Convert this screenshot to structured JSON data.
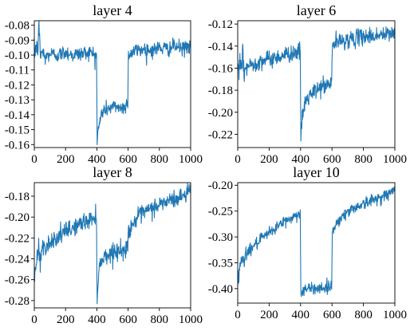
{
  "figure": {
    "line_color": "#1f77b4"
  },
  "chart_data": [
    {
      "type": "line",
      "title": "layer 4",
      "xlim": [
        0,
        1000
      ],
      "ylim": [
        -0.162,
        -0.077
      ],
      "xticks": [
        0,
        200,
        400,
        600,
        800,
        1000
      ],
      "xtick_labels": [
        "0",
        "200",
        "400",
        "600",
        "800",
        "1000"
      ],
      "yticks": [
        -0.08,
        -0.09,
        -0.1,
        -0.11,
        -0.12,
        -0.13,
        -0.14,
        -0.15,
        -0.16
      ],
      "ytick_labels": [
        "-0.08",
        "-0.09",
        "-0.10",
        "-0.11",
        "-0.12",
        "-0.13",
        "-0.14",
        "-0.15",
        "-0.16"
      ],
      "grid": false,
      "series": [
        {
          "x": [
            0,
            10,
            20,
            30,
            40,
            50,
            70,
            100,
            150,
            200,
            250,
            300,
            350,
            395,
            399,
            401,
            410,
            430,
            460,
            500,
            530,
            560,
            590,
            599,
            601,
            620,
            650,
            700,
            750,
            800,
            850,
            900,
            950,
            1000
          ],
          "y": [
            -0.1,
            -0.093,
            -0.098,
            -0.082,
            -0.101,
            -0.097,
            -0.102,
            -0.099,
            -0.1,
            -0.098,
            -0.1,
            -0.099,
            -0.098,
            -0.1,
            -0.099,
            -0.158,
            -0.15,
            -0.139,
            -0.136,
            -0.135,
            -0.134,
            -0.136,
            -0.133,
            -0.132,
            -0.099,
            -0.099,
            -0.097,
            -0.096,
            -0.097,
            -0.095,
            -0.096,
            -0.094,
            -0.096,
            -0.093
          ]
        }
      ]
    },
    {
      "type": "line",
      "title": "layer 6",
      "xlim": [
        0,
        1000
      ],
      "ylim": [
        -0.232,
        -0.117
      ],
      "xticks": [
        0,
        200,
        400,
        600,
        800,
        1000
      ],
      "xtick_labels": [
        "0",
        "200",
        "400",
        "600",
        "800",
        "1000"
      ],
      "yticks": [
        -0.12,
        -0.14,
        -0.16,
        -0.18,
        -0.2,
        -0.22
      ],
      "ytick_labels": [
        "-0.12",
        "-0.14",
        "-0.16",
        "-0.18",
        "-0.20",
        "-0.22"
      ],
      "grid": false,
      "series": [
        {
          "x": [
            0,
            10,
            20,
            30,
            40,
            50,
            70,
            100,
            150,
            200,
            250,
            300,
            350,
            395,
            399,
            401,
            410,
            430,
            460,
            500,
            530,
            560,
            590,
            599,
            601,
            620,
            650,
            700,
            750,
            800,
            850,
            900,
            950,
            1000
          ],
          "y": [
            -0.168,
            -0.163,
            -0.158,
            -0.15,
            -0.162,
            -0.16,
            -0.158,
            -0.156,
            -0.153,
            -0.152,
            -0.15,
            -0.148,
            -0.146,
            -0.145,
            -0.144,
            -0.228,
            -0.205,
            -0.19,
            -0.185,
            -0.18,
            -0.177,
            -0.176,
            -0.174,
            -0.173,
            -0.14,
            -0.137,
            -0.136,
            -0.134,
            -0.133,
            -0.131,
            -0.131,
            -0.13,
            -0.13,
            -0.127
          ]
        }
      ]
    },
    {
      "type": "line",
      "title": "layer 8",
      "xlim": [
        0,
        1000
      ],
      "ylim": [
        -0.287,
        -0.167
      ],
      "xticks": [
        0,
        200,
        400,
        600,
        800,
        1000
      ],
      "xtick_labels": [
        "0",
        "200",
        "400",
        "600",
        "800",
        "1000"
      ],
      "yticks": [
        -0.18,
        -0.2,
        -0.22,
        -0.24,
        -0.26,
        -0.28
      ],
      "ytick_labels": [
        "-0.18",
        "-0.20",
        "-0.22",
        "-0.24",
        "-0.26",
        "-0.28"
      ],
      "grid": false,
      "series": [
        {
          "x": [
            0,
            10,
            20,
            30,
            40,
            50,
            70,
            100,
            150,
            200,
            250,
            300,
            350,
            395,
            399,
            401,
            410,
            430,
            460,
            500,
            530,
            560,
            590,
            599,
            601,
            620,
            650,
            700,
            750,
            800,
            850,
            900,
            950,
            1000
          ],
          "y": [
            -0.258,
            -0.248,
            -0.238,
            -0.232,
            -0.235,
            -0.23,
            -0.228,
            -0.224,
            -0.219,
            -0.214,
            -0.21,
            -0.206,
            -0.203,
            -0.2,
            -0.2,
            -0.282,
            -0.255,
            -0.24,
            -0.237,
            -0.234,
            -0.232,
            -0.233,
            -0.23,
            -0.229,
            -0.213,
            -0.209,
            -0.202,
            -0.196,
            -0.192,
            -0.188,
            -0.185,
            -0.183,
            -0.18,
            -0.172
          ]
        }
      ]
    },
    {
      "type": "line",
      "title": "layer 10",
      "xlim": [
        0,
        1000
      ],
      "ylim": [
        -0.428,
        -0.195
      ],
      "xticks": [
        0,
        200,
        400,
        600,
        800,
        1000
      ],
      "xtick_labels": [
        "0",
        "200",
        "400",
        "600",
        "800",
        "1000"
      ],
      "yticks": [
        -0.2,
        -0.25,
        -0.3,
        -0.35,
        -0.4
      ],
      "ytick_labels": [
        "-0.20",
        "-0.25",
        "-0.30",
        "-0.35",
        "-0.40"
      ],
      "grid": false,
      "series": [
        {
          "x": [
            0,
            10,
            20,
            30,
            40,
            50,
            70,
            100,
            150,
            200,
            250,
            300,
            350,
            395,
            399,
            401,
            410,
            430,
            460,
            500,
            530,
            560,
            590,
            599,
            601,
            620,
            650,
            700,
            750,
            800,
            850,
            900,
            950,
            1000
          ],
          "y": [
            -0.38,
            -0.365,
            -0.352,
            -0.342,
            -0.338,
            -0.334,
            -0.328,
            -0.318,
            -0.305,
            -0.292,
            -0.28,
            -0.27,
            -0.262,
            -0.255,
            -0.252,
            -0.41,
            -0.405,
            -0.402,
            -0.4,
            -0.399,
            -0.398,
            -0.399,
            -0.396,
            -0.395,
            -0.29,
            -0.278,
            -0.265,
            -0.252,
            -0.242,
            -0.236,
            -0.23,
            -0.224,
            -0.218,
            -0.21
          ]
        }
      ]
    }
  ]
}
